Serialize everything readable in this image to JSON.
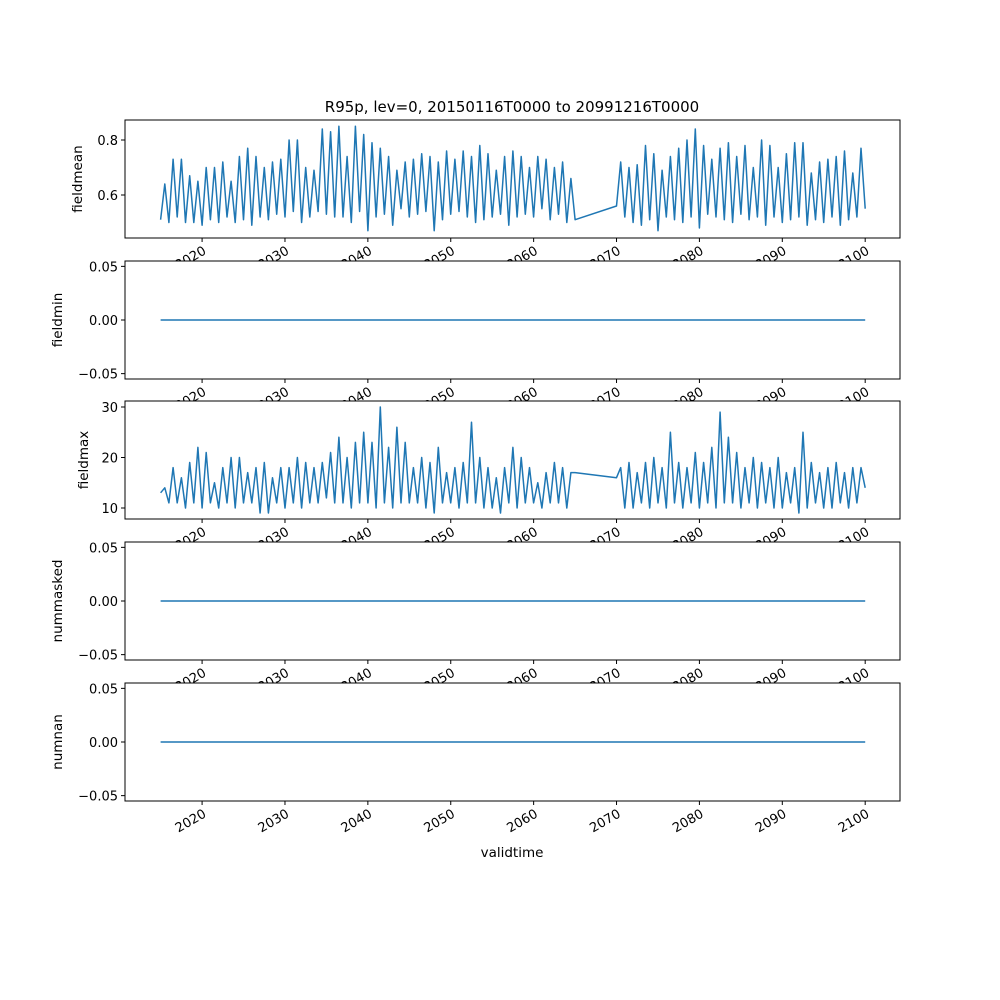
{
  "chart_data": {
    "type": "line",
    "title": "R95p, lev=0, 20150116T0000 to 20991216T0000",
    "xlabel": "validtime",
    "xlim": [
      2010.7,
      2104.2
    ],
    "x_ticks": [
      2020,
      2030,
      2040,
      2050,
      2060,
      2070,
      2080,
      2090,
      2100
    ],
    "x_tick_labels": [
      "2020",
      "2030",
      "2040",
      "2050",
      "2060",
      "2070",
      "2080",
      "2090",
      "2100"
    ],
    "line_color": "#1f77b4",
    "grid": false,
    "panels": [
      {
        "ylabel": "fieldmean",
        "ylim": [
          0.4436,
          0.8727
        ],
        "y_ticks": [
          0.6,
          0.8
        ],
        "y_tick_labels": [
          "0.6",
          "0.8"
        ],
        "segments": [
          {
            "x_start": 2015.0,
            "x_step": 0.5,
            "values": [
              0.51,
              0.64,
              0.5,
              0.73,
              0.52,
              0.73,
              0.5,
              0.67,
              0.5,
              0.65,
              0.49,
              0.7,
              0.51,
              0.7,
              0.5,
              0.72,
              0.52,
              0.65,
              0.5,
              0.74,
              0.51,
              0.77,
              0.49,
              0.74,
              0.52,
              0.7,
              0.51,
              0.72,
              0.53,
              0.73,
              0.52,
              0.8,
              0.54,
              0.8,
              0.5,
              0.7,
              0.52,
              0.69,
              0.54,
              0.84,
              0.53,
              0.83,
              0.52,
              0.85,
              0.52,
              0.74,
              0.5,
              0.85,
              0.54,
              0.82,
              0.47,
              0.79,
              0.52,
              0.77,
              0.53,
              0.74,
              0.49,
              0.69,
              0.55,
              0.72,
              0.52,
              0.73,
              0.53,
              0.75,
              0.54,
              0.74,
              0.47,
              0.72,
              0.51,
              0.76,
              0.53,
              0.73,
              0.54,
              0.76,
              0.52,
              0.74,
              0.5,
              0.78,
              0.51,
              0.75,
              0.52,
              0.69,
              0.53,
              0.74,
              0.49,
              0.76,
              0.52,
              0.74,
              0.53,
              0.7,
              0.52,
              0.74,
              0.55,
              0.73,
              0.51,
              0.7,
              0.53,
              0.72,
              0.5,
              0.66,
              0.51
            ]
          },
          {
            "x_start": 2070.0,
            "x_step": 0.5,
            "values": [
              0.56,
              0.72,
              0.52,
              0.7,
              0.5,
              0.71,
              0.49,
              0.78,
              0.51,
              0.75,
              0.47,
              0.69,
              0.52,
              0.74,
              0.51,
              0.77,
              0.5,
              0.8,
              0.52,
              0.84,
              0.48,
              0.78,
              0.53,
              0.73,
              0.52,
              0.77,
              0.51,
              0.79,
              0.5,
              0.74,
              0.53,
              0.78,
              0.51,
              0.7,
              0.52,
              0.8,
              0.49,
              0.78,
              0.52,
              0.7,
              0.5,
              0.75,
              0.51,
              0.79,
              0.52,
              0.79,
              0.49,
              0.68,
              0.51,
              0.72,
              0.5,
              0.73,
              0.52,
              0.74,
              0.49,
              0.76,
              0.51,
              0.68,
              0.52,
              0.77,
              0.55
            ]
          }
        ]
      },
      {
        "ylabel": "fieldmin",
        "ylim": [
          -0.055,
          0.055
        ],
        "y_ticks": [
          -0.05,
          0.0,
          0.05
        ],
        "y_tick_labels": [
          "−0.05",
          "0.00",
          "0.05"
        ],
        "segments": [
          {
            "x_start": 2015.0,
            "x_step": 85,
            "values": [
              0,
              0
            ]
          }
        ]
      },
      {
        "ylabel": "fieldmax",
        "ylim": [
          7.82,
          31.19
        ],
        "y_ticks": [
          10,
          20,
          30
        ],
        "y_tick_labels": [
          "10",
          "20",
          "30"
        ],
        "segments": [
          {
            "x_start": 2015.0,
            "x_step": 0.5,
            "values": [
              13,
              14,
              11,
              18,
              11,
              16,
              10,
              19,
              11,
              22,
              10,
              21,
              11,
              15,
              10,
              18,
              11,
              20,
              10,
              20,
              11,
              17,
              11,
              18,
              9,
              19,
              9,
              16,
              11,
              18,
              10,
              18,
              11,
              20,
              10,
              19,
              11,
              18,
              11,
              19,
              12,
              21,
              11,
              24,
              11,
              20,
              10,
              23,
              11,
              25,
              11,
              23,
              10,
              30,
              11,
              22,
              10,
              26,
              11,
              23,
              11,
              18,
              11,
              20,
              10,
              19,
              9,
              22,
              11,
              17,
              11,
              18,
              10,
              19,
              11,
              27,
              11,
              20,
              10,
              18,
              10,
              16,
              9,
              18,
              11,
              22,
              10,
              20,
              11,
              18,
              11,
              15,
              10,
              17,
              11,
              19,
              11,
              18,
              10,
              17,
              17
            ]
          },
          {
            "x_start": 2070.0,
            "x_step": 0.5,
            "values": [
              16,
              18,
              10,
              19,
              10,
              17,
              11,
              19,
              10,
              20,
              11,
              18,
              10,
              25,
              11,
              19,
              10,
              18,
              11,
              21,
              10,
              19,
              11,
              22,
              10,
              29,
              11,
              24,
              11,
              21,
              10,
              18,
              11,
              20,
              10,
              19,
              11,
              18,
              10,
              20,
              10,
              17,
              11,
              18,
              9,
              25,
              10,
              19,
              11,
              17,
              10,
              18,
              10,
              19,
              11,
              17,
              10,
              18,
              11,
              18,
              14
            ]
          }
        ]
      },
      {
        "ylabel": "nummasked",
        "ylim": [
          -0.055,
          0.055
        ],
        "y_ticks": [
          -0.05,
          0.0,
          0.05
        ],
        "y_tick_labels": [
          "−0.05",
          "0.00",
          "0.05"
        ],
        "segments": [
          {
            "x_start": 2015.0,
            "x_step": 85,
            "values": [
              0,
              0
            ]
          }
        ]
      },
      {
        "ylabel": "numnan",
        "ylim": [
          -0.055,
          0.055
        ],
        "y_ticks": [
          -0.05,
          0.0,
          0.05
        ],
        "y_tick_labels": [
          "−0.05",
          "0.00",
          "0.05"
        ],
        "segments": [
          {
            "x_start": 2015.0,
            "x_step": 85,
            "values": [
              0,
              0
            ]
          }
        ]
      }
    ]
  }
}
